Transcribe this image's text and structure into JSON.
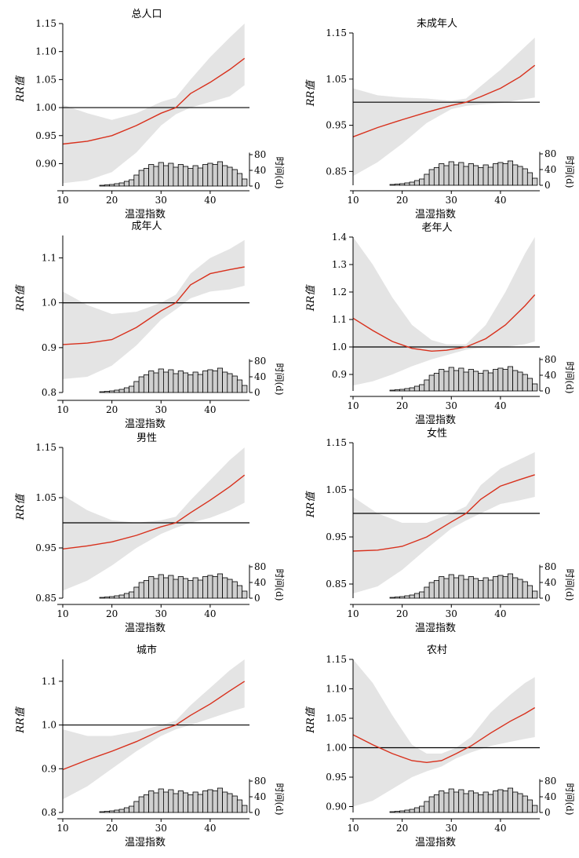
{
  "axis_text": {
    "xlabel": "温湿指数",
    "ylabel": "RR值",
    "y2label": "时间(d)",
    "y2ticks": [
      "80",
      "40",
      "0"
    ]
  },
  "chart_data": [
    {
      "type": "line",
      "title": "总人口",
      "ylim": [
        0.86,
        1.15
      ],
      "yticks": [
        0.9,
        0.95,
        1.0,
        1.05,
        1.1,
        1.15
      ],
      "xlim": [
        10,
        48
      ],
      "xticks": [
        10,
        20,
        30,
        40
      ],
      "reference": 1.0,
      "series": [
        {
          "x": [
            10,
            15,
            20,
            25,
            30,
            33,
            36,
            40,
            44,
            47
          ],
          "y": [
            0.935,
            0.94,
            0.95,
            0.968,
            0.99,
            1.0,
            1.025,
            1.045,
            1.068,
            1.088
          ],
          "lower": [
            0.865,
            0.87,
            0.885,
            0.92,
            0.968,
            0.988,
            1.0,
            1.01,
            1.02,
            1.04
          ],
          "upper": [
            1.005,
            0.99,
            0.978,
            0.99,
            1.01,
            1.018,
            1.05,
            1.09,
            1.125,
            1.15
          ]
        }
      ],
      "histogram": {
        "x": [
          18,
          19,
          20,
          21,
          22,
          23,
          24,
          25,
          26,
          27,
          28,
          29,
          30,
          31,
          32,
          33,
          34,
          35,
          36,
          37,
          38,
          39,
          40,
          41,
          42,
          43,
          44,
          45,
          46,
          47
        ],
        "days": [
          2,
          3,
          4,
          6,
          8,
          12,
          16,
          28,
          40,
          45,
          55,
          50,
          60,
          52,
          58,
          48,
          55,
          50,
          45,
          52,
          46,
          55,
          58,
          55,
          62,
          52,
          48,
          42,
          32,
          18
        ],
        "ylim": [
          0,
          100
        ]
      }
    },
    {
      "type": "line",
      "title": "未成年人",
      "ylim": [
        0.82,
        1.15
      ],
      "yticks": [
        0.85,
        0.95,
        1.05,
        1.15
      ],
      "xlim": [
        10,
        48
      ],
      "xticks": [
        10,
        20,
        30,
        40
      ],
      "reference": 1.0,
      "series": [
        {
          "x": [
            10,
            15,
            20,
            25,
            30,
            33,
            36,
            40,
            44,
            47
          ],
          "y": [
            0.925,
            0.945,
            0.962,
            0.978,
            0.993,
            1.0,
            1.012,
            1.03,
            1.055,
            1.08
          ],
          "lower": [
            0.84,
            0.87,
            0.91,
            0.955,
            0.985,
            0.992,
            0.995,
            0.998,
            1.005,
            1.01
          ],
          "upper": [
            1.03,
            1.015,
            1.01,
            1.008,
            1.003,
            1.008,
            1.035,
            1.07,
            1.11,
            1.14
          ]
        }
      ],
      "histogram": {
        "x": [
          18,
          19,
          20,
          21,
          22,
          23,
          24,
          25,
          26,
          27,
          28,
          29,
          30,
          31,
          32,
          33,
          34,
          35,
          36,
          37,
          38,
          39,
          40,
          41,
          42,
          43,
          44,
          45,
          46,
          47
        ],
        "days": [
          2,
          3,
          4,
          6,
          8,
          12,
          16,
          28,
          40,
          45,
          55,
          50,
          60,
          52,
          58,
          48,
          55,
          50,
          45,
          52,
          46,
          55,
          58,
          55,
          62,
          52,
          48,
          42,
          32,
          18
        ],
        "ylim": [
          0,
          100
        ]
      }
    },
    {
      "type": "line",
      "title": "成年人",
      "ylim": [
        0.8,
        1.15
      ],
      "yticks": [
        0.8,
        0.9,
        1.0,
        1.1
      ],
      "xlim": [
        10,
        48
      ],
      "xticks": [
        10,
        20,
        30,
        40
      ],
      "reference": 1.0,
      "series": [
        {
          "x": [
            10,
            15,
            20,
            25,
            30,
            33,
            36,
            40,
            44,
            47
          ],
          "y": [
            0.907,
            0.91,
            0.918,
            0.945,
            0.982,
            1.0,
            1.04,
            1.065,
            1.074,
            1.08
          ],
          "lower": [
            0.83,
            0.835,
            0.86,
            0.905,
            0.962,
            0.985,
            1.01,
            1.025,
            1.03,
            1.038
          ],
          "upper": [
            1.025,
            0.995,
            0.975,
            0.98,
            1.0,
            1.018,
            1.065,
            1.1,
            1.12,
            1.14
          ]
        }
      ],
      "histogram": {
        "x": [
          18,
          19,
          20,
          21,
          22,
          23,
          24,
          25,
          26,
          27,
          28,
          29,
          30,
          31,
          32,
          33,
          34,
          35,
          36,
          37,
          38,
          39,
          40,
          41,
          42,
          43,
          44,
          45,
          46,
          47
        ],
        "days": [
          2,
          3,
          4,
          6,
          8,
          12,
          16,
          28,
          40,
          45,
          55,
          50,
          60,
          52,
          58,
          48,
          55,
          50,
          45,
          52,
          46,
          55,
          58,
          55,
          62,
          52,
          48,
          42,
          32,
          18
        ],
        "ylim": [
          0,
          100
        ]
      }
    },
    {
      "type": "line",
      "title": "老年人",
      "ylim": [
        0.84,
        1.4
      ],
      "yticks": [
        0.9,
        1.0,
        1.1,
        1.2,
        1.3,
        1.4
      ],
      "xlim": [
        10,
        48
      ],
      "xticks": [
        10,
        20,
        30,
        40
      ],
      "reference": 1.0,
      "series": [
        {
          "x": [
            10,
            14,
            18,
            22,
            26,
            29,
            33,
            37,
            41,
            45,
            47
          ],
          "y": [
            1.105,
            1.06,
            1.02,
            0.995,
            0.985,
            0.988,
            1.0,
            1.03,
            1.08,
            1.15,
            1.19
          ],
          "lower": [
            0.86,
            0.875,
            0.9,
            0.93,
            0.955,
            0.97,
            0.99,
            1.0,
            1.0,
            1.01,
            1.02
          ],
          "upper": [
            1.4,
            1.3,
            1.18,
            1.08,
            1.025,
            1.01,
            1.01,
            1.08,
            1.2,
            1.34,
            1.4
          ]
        }
      ],
      "histogram": {
        "x": [
          18,
          19,
          20,
          21,
          22,
          23,
          24,
          25,
          26,
          27,
          28,
          29,
          30,
          31,
          32,
          33,
          34,
          35,
          36,
          37,
          38,
          39,
          40,
          41,
          42,
          43,
          44,
          45,
          46,
          47
        ],
        "days": [
          2,
          3,
          4,
          6,
          8,
          12,
          16,
          28,
          40,
          45,
          55,
          50,
          60,
          52,
          58,
          48,
          55,
          50,
          45,
          52,
          46,
          55,
          58,
          55,
          62,
          52,
          48,
          42,
          32,
          18
        ],
        "ylim": [
          0,
          100
        ]
      }
    },
    {
      "type": "line",
      "title": "男性",
      "ylim": [
        0.85,
        1.15
      ],
      "yticks": [
        0.85,
        0.95,
        1.05,
        1.15
      ],
      "xlim": [
        10,
        48
      ],
      "xticks": [
        10,
        20,
        30,
        40
      ],
      "reference": 1.0,
      "series": [
        {
          "x": [
            10,
            15,
            20,
            25,
            30,
            33,
            36,
            40,
            44,
            47
          ],
          "y": [
            0.948,
            0.954,
            0.962,
            0.975,
            0.992,
            1.0,
            1.02,
            1.045,
            1.072,
            1.095
          ],
          "lower": [
            0.865,
            0.885,
            0.915,
            0.95,
            0.978,
            0.99,
            1.0,
            1.01,
            1.025,
            1.04
          ],
          "upper": [
            1.055,
            1.025,
            1.005,
            1.0,
            1.005,
            1.012,
            1.045,
            1.085,
            1.125,
            1.15
          ]
        }
      ],
      "histogram": {
        "x": [
          18,
          19,
          20,
          21,
          22,
          23,
          24,
          25,
          26,
          27,
          28,
          29,
          30,
          31,
          32,
          33,
          34,
          35,
          36,
          37,
          38,
          39,
          40,
          41,
          42,
          43,
          44,
          45,
          46,
          47
        ],
        "days": [
          2,
          3,
          4,
          6,
          8,
          12,
          16,
          28,
          40,
          45,
          55,
          50,
          60,
          52,
          58,
          48,
          55,
          50,
          45,
          52,
          46,
          55,
          58,
          55,
          62,
          52,
          48,
          42,
          32,
          18
        ],
        "ylim": [
          0,
          100
        ]
      }
    },
    {
      "type": "line",
      "title": "女性",
      "ylim": [
        0.82,
        1.15
      ],
      "yticks": [
        0.85,
        0.95,
        1.05,
        1.15
      ],
      "xlim": [
        10,
        48
      ],
      "xticks": [
        10,
        20,
        30,
        40
      ],
      "reference": 1.0,
      "series": [
        {
          "x": [
            10,
            15,
            20,
            25,
            30,
            33,
            36,
            40,
            44,
            47
          ],
          "y": [
            0.92,
            0.922,
            0.93,
            0.95,
            0.982,
            1.0,
            1.03,
            1.058,
            1.072,
            1.082
          ],
          "lower": [
            0.83,
            0.845,
            0.88,
            0.925,
            0.968,
            0.985,
            1.0,
            1.02,
            1.028,
            1.035
          ],
          "upper": [
            1.035,
            1.0,
            0.98,
            0.98,
            1.0,
            1.015,
            1.06,
            1.095,
            1.115,
            1.13
          ]
        }
      ],
      "histogram": {
        "x": [
          18,
          19,
          20,
          21,
          22,
          23,
          24,
          25,
          26,
          27,
          28,
          29,
          30,
          31,
          32,
          33,
          34,
          35,
          36,
          37,
          38,
          39,
          40,
          41,
          42,
          43,
          44,
          45,
          46,
          47
        ],
        "days": [
          2,
          3,
          4,
          6,
          8,
          12,
          16,
          28,
          40,
          45,
          55,
          50,
          60,
          52,
          58,
          48,
          55,
          50,
          45,
          52,
          46,
          55,
          58,
          55,
          62,
          52,
          48,
          42,
          32,
          18
        ],
        "ylim": [
          0,
          100
        ]
      }
    },
    {
      "type": "line",
      "title": "城市",
      "ylim": [
        0.8,
        1.15
      ],
      "yticks": [
        0.8,
        0.9,
        1.0,
        1.1
      ],
      "xlim": [
        10,
        48
      ],
      "xticks": [
        10,
        20,
        30,
        40
      ],
      "reference": 1.0,
      "series": [
        {
          "x": [
            10,
            15,
            20,
            25,
            30,
            33,
            36,
            40,
            44,
            47
          ],
          "y": [
            0.898,
            0.92,
            0.94,
            0.962,
            0.988,
            1.0,
            1.022,
            1.048,
            1.078,
            1.1
          ],
          "lower": [
            0.83,
            0.86,
            0.9,
            0.94,
            0.975,
            0.99,
            1.0,
            1.015,
            1.03,
            1.04
          ],
          "upper": [
            0.99,
            0.975,
            0.975,
            0.985,
            1.0,
            1.01,
            1.045,
            1.085,
            1.125,
            1.15
          ]
        }
      ],
      "histogram": {
        "x": [
          18,
          19,
          20,
          21,
          22,
          23,
          24,
          25,
          26,
          27,
          28,
          29,
          30,
          31,
          32,
          33,
          34,
          35,
          36,
          37,
          38,
          39,
          40,
          41,
          42,
          43,
          44,
          45,
          46,
          47
        ],
        "days": [
          2,
          3,
          4,
          6,
          8,
          12,
          16,
          28,
          40,
          45,
          55,
          50,
          60,
          52,
          58,
          48,
          55,
          50,
          45,
          52,
          46,
          55,
          58,
          55,
          62,
          52,
          48,
          42,
          32,
          18
        ],
        "ylim": [
          0,
          100
        ]
      }
    },
    {
      "type": "line",
      "title": "农村",
      "ylim": [
        0.89,
        1.15
      ],
      "yticks": [
        0.9,
        0.95,
        1.0,
        1.05,
        1.1,
        1.15
      ],
      "xlim": [
        10,
        48
      ],
      "xticks": [
        10,
        20,
        30,
        40
      ],
      "reference": 1.0,
      "series": [
        {
          "x": [
            10,
            14,
            18,
            22,
            25,
            28,
            31,
            34,
            38,
            42,
            45,
            47
          ],
          "y": [
            1.022,
            1.005,
            0.99,
            0.978,
            0.975,
            0.978,
            0.99,
            1.003,
            1.025,
            1.045,
            1.058,
            1.068
          ],
          "lower": [
            0.9,
            0.91,
            0.93,
            0.95,
            0.96,
            0.968,
            0.982,
            0.992,
            1.003,
            1.01,
            1.015,
            1.018
          ],
          "upper": [
            1.15,
            1.11,
            1.055,
            1.005,
            0.99,
            0.99,
            1.0,
            1.018,
            1.06,
            1.09,
            1.11,
            1.12
          ]
        }
      ],
      "histogram": {
        "x": [
          18,
          19,
          20,
          21,
          22,
          23,
          24,
          25,
          26,
          27,
          28,
          29,
          30,
          31,
          32,
          33,
          34,
          35,
          36,
          37,
          38,
          39,
          40,
          41,
          42,
          43,
          44,
          45,
          46,
          47
        ],
        "days": [
          2,
          3,
          4,
          6,
          8,
          12,
          16,
          28,
          40,
          45,
          55,
          50,
          60,
          52,
          58,
          48,
          55,
          50,
          45,
          52,
          46,
          55,
          58,
          55,
          62,
          52,
          48,
          42,
          32,
          18
        ],
        "ylim": [
          0,
          100
        ]
      }
    }
  ]
}
